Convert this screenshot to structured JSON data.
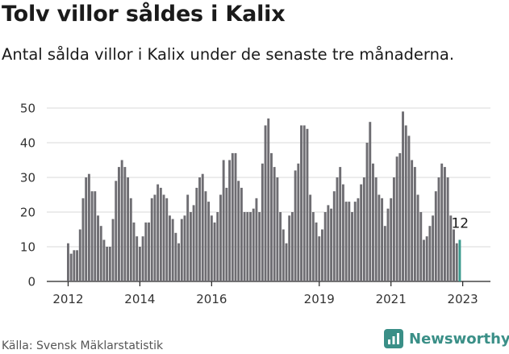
{
  "title": "Tolv villor såldes i Kalix",
  "subtitle": "Antal sålda villor i Kalix under de senaste tre månaderna.",
  "source": "Källa: Svensk Mäklarstatistik",
  "brand": {
    "name": "Newsworthy",
    "icon": "newsworthy-logo-icon",
    "color": "#3a8f87"
  },
  "colors": {
    "bar": "#6e6d72",
    "highlight": "#3a9a8e",
    "grid": "#d9d9d9"
  },
  "chart_data": {
    "type": "bar",
    "title": "Tolv villor såldes i Kalix",
    "xlabel": "",
    "ylabel": "",
    "ylim": [
      0,
      50
    ],
    "yticks": [
      0,
      10,
      20,
      30,
      40,
      50
    ],
    "xticks": [
      "2012",
      "2014",
      "2016",
      "2019",
      "2021",
      "2023"
    ],
    "x_start": "2012-01",
    "grid": true,
    "highlight_label": "12",
    "values": [
      11,
      8,
      9,
      9,
      15,
      24,
      30,
      31,
      26,
      26,
      19,
      16,
      12,
      10,
      10,
      18,
      29,
      33,
      35,
      33,
      30,
      24,
      17,
      13,
      10,
      13,
      17,
      17,
      24,
      25,
      28,
      27,
      25,
      24,
      19,
      18,
      14,
      11,
      18,
      19,
      25,
      20,
      22,
      27,
      30,
      31,
      26,
      23,
      19,
      17,
      20,
      25,
      35,
      27,
      35,
      37,
      37,
      29,
      27,
      20,
      20,
      20,
      21,
      24,
      20,
      34,
      45,
      47,
      37,
      33,
      30,
      20,
      15,
      11,
      19,
      20,
      32,
      34,
      45,
      45,
      44,
      25,
      20,
      17,
      13,
      15,
      20,
      22,
      21,
      26,
      30,
      33,
      28,
      23,
      23,
      20,
      23,
      24,
      28,
      30,
      40,
      46,
      34,
      30,
      25,
      24,
      16,
      21,
      24,
      30,
      36,
      37,
      49,
      45,
      42,
      35,
      33,
      25,
      20,
      12,
      13,
      16,
      19,
      26,
      30,
      34,
      33,
      30,
      19,
      15,
      11,
      12
    ]
  }
}
